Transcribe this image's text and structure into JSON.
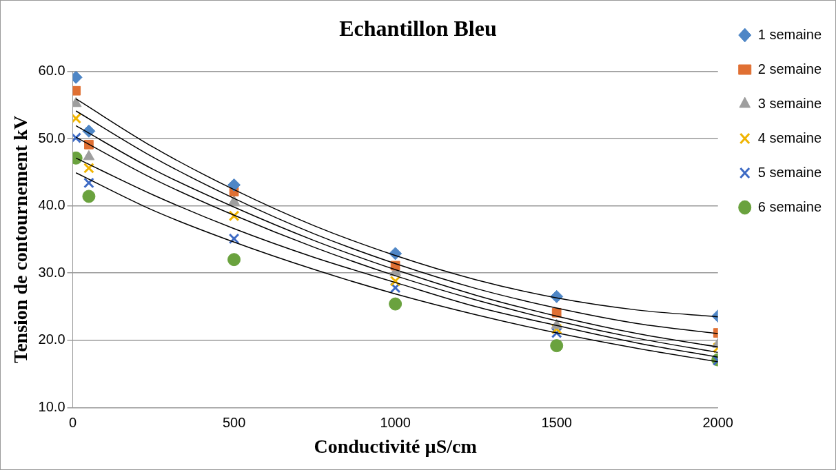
{
  "chart_data": {
    "type": "scatter",
    "title": "Echantillon Bleu",
    "xlabel": "Conductivité µS/cm",
    "ylabel": "Tension de contournement kV",
    "x": [
      10,
      50,
      500,
      1000,
      1500,
      2000
    ],
    "series": [
      {
        "name": "1 semaine",
        "color": "#4e86c6",
        "marker": "diamond",
        "values": [
          59.1,
          51.1,
          43.1,
          32.9,
          26.5,
          23.6
        ]
      },
      {
        "name": "2 semaine",
        "color": "#e07033",
        "marker": "square",
        "values": [
          57.1,
          49.1,
          42.1,
          31.1,
          24.1,
          21.1
        ]
      },
      {
        "name": "3 semaine",
        "color": "#9e9e9e",
        "marker": "triangle",
        "values": [
          55.2,
          47.3,
          40.6,
          30.1,
          22.2,
          19.4
        ]
      },
      {
        "name": "4 semaine",
        "color": "#f0b400",
        "marker": "cross",
        "values": [
          53.0,
          45.6,
          38.5,
          28.8,
          21.7,
          18.9
        ]
      },
      {
        "name": "5 semaine",
        "color": "#3d6ac4",
        "marker": "cross",
        "values": [
          50.1,
          43.4,
          35.1,
          27.8,
          21.1,
          17.0
        ]
      },
      {
        "name": "6 semaine",
        "color": "#6aa23e",
        "marker": "circle",
        "values": [
          47.1,
          41.4,
          32.0,
          25.4,
          19.2,
          17.1
        ]
      },
      {
        "type": "line",
        "color": "#000000",
        "marker": "none",
        "x": [
          10,
          250,
          500,
          750,
          1000,
          1250,
          1500,
          1750,
          2000
        ],
        "values": [
          55.9,
          48.7,
          42.4,
          37.0,
          32.6,
          29.0,
          26.3,
          24.5,
          23.5
        ]
      },
      {
        "type": "line",
        "color": "#000000",
        "marker": "none",
        "x": [
          10,
          250,
          500,
          750,
          1000,
          1250,
          1500,
          1750,
          2000
        ],
        "values": [
          54.1,
          47.2,
          41.1,
          35.8,
          31.4,
          27.7,
          24.8,
          22.5,
          21.0
        ]
      },
      {
        "type": "line",
        "color": "#000000",
        "marker": "none",
        "x": [
          10,
          250,
          500,
          750,
          1000,
          1250,
          1500,
          1750,
          2000
        ],
        "values": [
          51.9,
          45.4,
          39.8,
          34.8,
          30.5,
          26.7,
          23.6,
          21.0,
          19.0
        ]
      },
      {
        "type": "line",
        "color": "#000000",
        "marker": "none",
        "x": [
          10,
          250,
          500,
          750,
          1000,
          1250,
          1500,
          1750,
          2000
        ],
        "values": [
          50.2,
          44.0,
          38.6,
          33.8,
          29.6,
          26.0,
          22.9,
          20.3,
          18.2
        ]
      },
      {
        "type": "line",
        "color": "#000000",
        "marker": "none",
        "x": [
          10,
          250,
          500,
          750,
          1000,
          1250,
          1500,
          1750,
          2000
        ],
        "values": [
          47.1,
          41.6,
          36.6,
          32.3,
          28.6,
          25.0,
          22.2,
          19.6,
          17.5
        ]
      },
      {
        "type": "line",
        "color": "#000000",
        "marker": "none",
        "x": [
          10,
          250,
          500,
          750,
          1000,
          1250,
          1500,
          1750,
          2000
        ],
        "values": [
          44.9,
          39.3,
          34.6,
          30.5,
          26.9,
          23.8,
          21.1,
          18.8,
          16.8
        ]
      }
    ],
    "xlim": [
      0,
      2000
    ],
    "xticks": [
      0,
      500,
      1000,
      1500,
      2000
    ],
    "ylim": [
      10,
      60
    ],
    "yticks": [
      {
        "value": 10,
        "label": "10.0"
      },
      {
        "value": 20,
        "label": "20.0"
      },
      {
        "value": 30,
        "label": "30.0"
      },
      {
        "value": 40,
        "label": "40.0"
      },
      {
        "value": 50,
        "label": "50.0"
      },
      {
        "value": 60,
        "label": "60.0"
      }
    ],
    "grid": "y",
    "legend": "right"
  }
}
